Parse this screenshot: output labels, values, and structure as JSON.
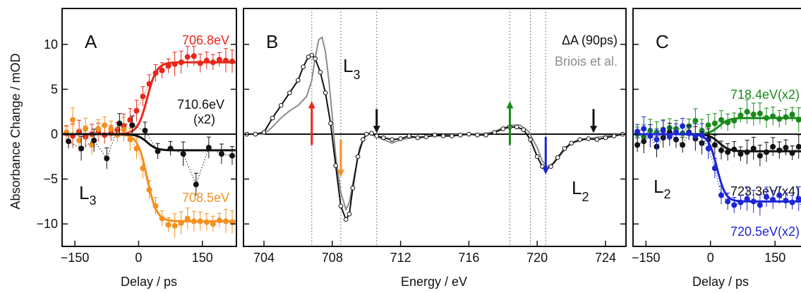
{
  "figure": {
    "ylabel": "Absorbance Change / mOD",
    "colors": {
      "red": "#e8261a",
      "orange": "#f5901e",
      "black": "#111111",
      "green": "#198a1a",
      "blue": "#1d25d6",
      "gray": "#8c8c8c",
      "dotted": "#555555"
    }
  },
  "chart_data": [
    {
      "panel": "A",
      "type": "scatter",
      "xlabel": "Delay / ps",
      "ylabel": "Absorbance Change / mOD",
      "xlim": [
        -180,
        230
      ],
      "ylim": [
        -12.5,
        14
      ],
      "xticks": [
        -150,
        0,
        150
      ],
      "yticks": [
        -10,
        -5,
        0,
        5,
        10
      ],
      "region_label": "L",
      "region_sub": "3",
      "series": [
        {
          "name": "706.8eV",
          "color": "red",
          "fit": {
            "amp": 8.0,
            "t0": 20,
            "w": 45
          },
          "x": [
            -170,
            -155,
            -140,
            -125,
            -110,
            -95,
            -80,
            -65,
            -50,
            -35,
            -20,
            -5,
            10,
            25,
            40,
            55,
            70,
            85,
            100,
            115,
            130,
            145,
            160,
            175,
            190,
            205,
            220
          ],
          "y": [
            0.1,
            -0.2,
            0.3,
            -0.3,
            0.0,
            0.2,
            -0.1,
            0.1,
            0.5,
            0.9,
            1.6,
            2.6,
            4.2,
            5.6,
            6.8,
            7.1,
            7.6,
            7.8,
            8.0,
            8.6,
            8.7,
            7.9,
            8.2,
            8.0,
            8.3,
            8.2,
            8.1
          ]
        },
        {
          "name": "708.5eV",
          "color": "orange",
          "fit": {
            "amp": -9.7,
            "t0": 20,
            "w": 45
          },
          "x": [
            -170,
            -155,
            -140,
            -125,
            -110,
            -95,
            -80,
            -65,
            -50,
            -35,
            -20,
            -5,
            10,
            25,
            40,
            55,
            70,
            85,
            100,
            115,
            130,
            145,
            160,
            175,
            190,
            205,
            220
          ],
          "y": [
            0.2,
            1.6,
            -0.7,
            0.6,
            -1.2,
            0.6,
            1.0,
            0.6,
            -0.1,
            0.5,
            -0.6,
            -1.6,
            -3.8,
            -6.2,
            -8.0,
            -9.4,
            -10.1,
            -10.2,
            -9.9,
            -9.4,
            -9.7,
            -9.7,
            -9.8,
            -10.0,
            -9.6,
            -9.7,
            -9.8
          ]
        },
        {
          "name": "710.6eV (x2)",
          "color": "black",
          "fit": {
            "amp": -1.8,
            "t0": 20,
            "w": 45
          },
          "x": [
            -165,
            -135,
            -105,
            -75,
            -45,
            -15,
            15,
            45,
            75,
            105,
            135,
            165,
            195,
            220
          ],
          "y": [
            -0.8,
            -1.6,
            -0.7,
            -2.7,
            1.2,
            1.0,
            0.4,
            -1.9,
            -1.6,
            -2.2,
            -5.6,
            -1.5,
            -2.2,
            -2.4
          ]
        }
      ],
      "labels": [
        "706.8eV",
        "710.6eV",
        "(x2)",
        "708.5eV"
      ]
    },
    {
      "panel": "B",
      "type": "line",
      "xlabel": "Energy / eV",
      "xlim": [
        702.8,
        725.2
      ],
      "ylim": [
        -12.5,
        14
      ],
      "xticks": [
        704,
        708,
        712,
        716,
        720,
        724
      ],
      "legend": [
        "ΔA (90ps)",
        "Briois et al."
      ],
      "region_labels": [
        {
          "main": "L",
          "sub": "3"
        },
        {
          "main": "L",
          "sub": "2"
        }
      ],
      "vlines": [
        706.8,
        708.5,
        710.6,
        718.4,
        719.6,
        720.5
      ],
      "arrows": [
        {
          "x": 706.8,
          "color": "red",
          "dir": "up"
        },
        {
          "x": 708.5,
          "color": "orange",
          "dir": "down"
        },
        {
          "x": 710.6,
          "color": "black",
          "dir": "down"
        },
        {
          "x": 718.4,
          "color": "green",
          "dir": "up"
        },
        {
          "x": 720.5,
          "color": "blue",
          "dir": "down"
        },
        {
          "x": 723.3,
          "color": "black",
          "dir": "down"
        }
      ],
      "series": [
        {
          "name": "ΔA (90ps)",
          "color": "black",
          "x": [
            703.0,
            703.5,
            704.0,
            704.5,
            705.0,
            705.5,
            706.0,
            706.3,
            706.6,
            706.8,
            707.0,
            707.3,
            707.6,
            707.9,
            708.2,
            708.5,
            708.8,
            709.0,
            709.2,
            709.5,
            709.8,
            710.0,
            710.3,
            710.6,
            711.0,
            711.5,
            712.0,
            712.5,
            713.0,
            713.5,
            714.0,
            714.5,
            715.0,
            715.5,
            716.0,
            716.5,
            717.0,
            717.5,
            718.0,
            718.4,
            718.8,
            719.2,
            719.6,
            720.0,
            720.3,
            720.5,
            720.8,
            721.2,
            721.6,
            722.0,
            722.5,
            723.0,
            723.5,
            724.0,
            724.5,
            725.0
          ],
          "y": [
            0,
            0,
            0.2,
            1.8,
            3.2,
            4.6,
            6.0,
            7.5,
            8.6,
            8.8,
            8.4,
            6.9,
            4.6,
            1.2,
            -3.5,
            -8.0,
            -9.5,
            -8.9,
            -6.0,
            -2.5,
            -0.6,
            0.0,
            0.1,
            -0.2,
            -0.4,
            -0.6,
            -0.5,
            -0.2,
            -0.4,
            -0.3,
            -0.1,
            -0.2,
            -0.2,
            -0.1,
            0.0,
            -0.1,
            -0.1,
            0.2,
            0.6,
            0.8,
            0.8,
            0.5,
            -0.6,
            -2.5,
            -3.6,
            -3.9,
            -3.6,
            -2.6,
            -1.6,
            -1.0,
            -0.6,
            -0.5,
            -0.6,
            -0.4,
            -0.2,
            0.0
          ]
        },
        {
          "name": "Briois et al.",
          "color": "gray",
          "x": [
            703.0,
            704.0,
            704.5,
            705.0,
            705.5,
            706.0,
            706.5,
            706.8,
            707.0,
            707.2,
            707.4,
            707.6,
            707.8,
            708.0,
            708.2,
            708.5,
            708.8,
            709.0,
            709.3,
            709.6,
            710.0,
            710.5,
            711.0,
            711.5,
            712.0,
            713.0,
            714.0,
            715.0,
            716.0,
            717.0,
            717.5,
            718.0,
            718.5,
            719.0,
            719.5,
            720.0,
            720.3,
            720.6,
            721.0,
            721.5,
            722.0,
            723.0,
            724.0,
            725.0
          ],
          "y": [
            0,
            0,
            0.8,
            1.8,
            2.6,
            3.2,
            4.2,
            6.0,
            8.5,
            10.5,
            10.8,
            9.2,
            6.0,
            2.0,
            -2.5,
            -6.5,
            -8.4,
            -7.6,
            -4.5,
            -1.5,
            0.1,
            -0.2,
            -0.6,
            -1.0,
            -0.6,
            -0.3,
            -0.2,
            -0.1,
            0.0,
            0.1,
            0.3,
            0.7,
            1.0,
            1.0,
            0.3,
            -1.5,
            -3.0,
            -3.6,
            -3.2,
            -2.0,
            -1.0,
            -0.5,
            -0.2,
            0.0
          ]
        }
      ]
    },
    {
      "panel": "C",
      "type": "scatter",
      "xlabel": "Delay / ps",
      "xlim": [
        -180,
        230
      ],
      "ylim": [
        -12.5,
        14
      ],
      "xticks": [
        -150,
        0,
        150
      ],
      "region_label": "L",
      "region_sub": "2",
      "series": [
        {
          "name": "718.4eV(x2)",
          "color": "green",
          "fit": {
            "amp": 1.8,
            "t0": 20,
            "w": 45
          },
          "x": [
            -170,
            -155,
            -140,
            -125,
            -110,
            -95,
            -80,
            -65,
            -50,
            -35,
            -20,
            -5,
            10,
            25,
            40,
            55,
            70,
            85,
            100,
            115,
            130,
            145,
            160,
            175,
            190,
            205,
            220
          ],
          "y": [
            0.0,
            -0.3,
            0.4,
            0.2,
            0.5,
            0.7,
            0.6,
            0.1,
            0.9,
            1.5,
            0.4,
            1.0,
            1.2,
            1.6,
            1.3,
            1.5,
            2.1,
            2.5,
            2.2,
            2.3,
            1.8,
            2.0,
            1.7,
            1.9,
            2.2,
            1.6,
            1.9
          ]
        },
        {
          "name": "723.3eV(x4)",
          "color": "black",
          "fit": {
            "amp": -1.9,
            "t0": 20,
            "w": 45
          },
          "x": [
            -170,
            -155,
            -140,
            -125,
            -110,
            -95,
            -80,
            -65,
            -50,
            -35,
            -20,
            -5,
            10,
            25,
            40,
            55,
            70,
            85,
            100,
            115,
            130,
            145,
            160,
            175,
            190,
            205,
            220
          ],
          "y": [
            -1.2,
            -0.8,
            -0.2,
            -1.4,
            -0.4,
            0.2,
            -0.6,
            -1.2,
            0.2,
            -0.5,
            -1.0,
            -0.6,
            -1.2,
            -1.8,
            -2.0,
            -1.7,
            -2.2,
            -2.0,
            -1.6,
            -2.4,
            -2.0,
            -1.4,
            -1.8,
            -1.5,
            -2.1,
            -1.4,
            -1.8
          ]
        },
        {
          "name": "720.5eV(x2)",
          "color": "blue",
          "fit": {
            "amp": -7.5,
            "t0": 15,
            "w": 40
          },
          "x": [
            -170,
            -155,
            -140,
            -125,
            -110,
            -95,
            -80,
            -65,
            -50,
            -35,
            -20,
            -5,
            10,
            25,
            40,
            55,
            70,
            85,
            100,
            115,
            130,
            145,
            160,
            175,
            190,
            205,
            220
          ],
          "y": [
            0.3,
            0.6,
            -0.2,
            -0.6,
            0.4,
            -0.3,
            0.2,
            0.9,
            0.1,
            -0.2,
            -0.1,
            -1.6,
            -3.8,
            -6.8,
            -7.5,
            -7.9,
            -7.6,
            -7.2,
            -7.5,
            -7.9,
            -7.0,
            -7.3,
            -6.8,
            -7.4,
            -7.6,
            -7.2,
            -9.6
          ]
        }
      ],
      "labels": [
        "718.4eV(x2)",
        "723.3eV(x4)",
        "720.5eV(x2)"
      ]
    }
  ]
}
